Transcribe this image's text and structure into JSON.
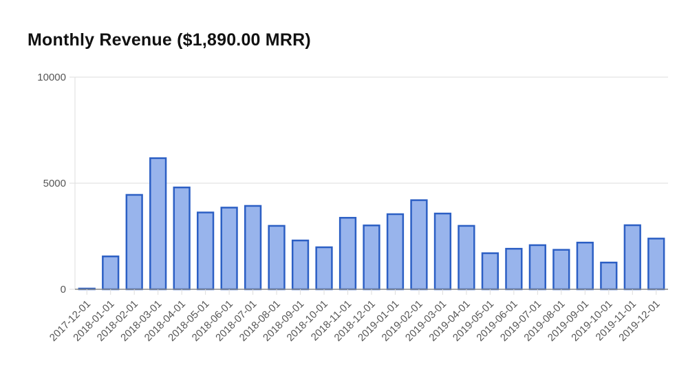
{
  "title": "Monthly Revenue ($1,890.00 MRR)",
  "colors": {
    "bar_fill": "#98b4ec",
    "bar_stroke": "#2c5fc4",
    "grid": "#dddddd",
    "axis": "#888888"
  },
  "chart_data": {
    "type": "bar",
    "title": "Monthly Revenue ($1,890.00 MRR)",
    "xlabel": "",
    "ylabel": "",
    "ylim": [
      0,
      10000
    ],
    "yticks": [
      0,
      5000,
      10000
    ],
    "ytick_labels": [
      "0",
      "5000",
      "10000"
    ],
    "grid": true,
    "legend": "none",
    "categories": [
      "2017-12-01",
      "2018-01-01",
      "2018-02-01",
      "2018-03-01",
      "2018-04-01",
      "2018-05-01",
      "2018-06-01",
      "2018-07-01",
      "2018-08-01",
      "2018-09-01",
      "2018-10-01",
      "2018-11-01",
      "2018-12-01",
      "2019-01-01",
      "2019-02-01",
      "2019-03-01",
      "2019-04-01",
      "2019-05-01",
      "2019-06-01",
      "2019-07-01",
      "2019-08-01",
      "2019-09-01",
      "2019-10-01",
      "2019-11-01",
      "2019-12-01"
    ],
    "values": [
      20,
      1550,
      4450,
      6180,
      4800,
      3620,
      3850,
      3930,
      2990,
      2300,
      1980,
      3370,
      3010,
      3540,
      4200,
      3570,
      2990,
      1700,
      1910,
      2080,
      1860,
      2200,
      1260,
      3020,
      2390
    ]
  }
}
